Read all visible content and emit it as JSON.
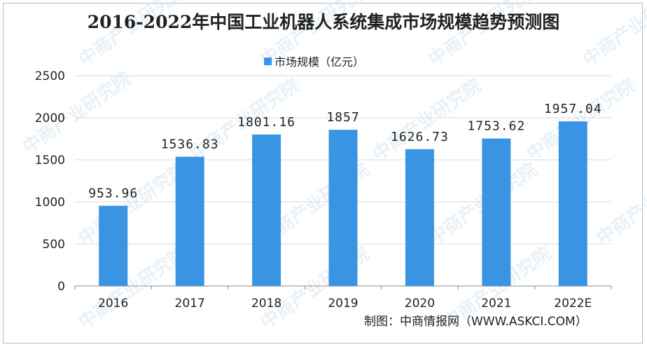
{
  "chart_data": {
    "type": "bar",
    "title": "2016-2022年中国工业机器人系统集成市场规模趋势预测图",
    "legend": {
      "label": "市场规模（亿元）",
      "placement": "top-center"
    },
    "categories": [
      "2016",
      "2017",
      "2018",
      "2019",
      "2020",
      "2021",
      "2022E"
    ],
    "values": [
      953.96,
      1536.83,
      1801.16,
      1857,
      1626.73,
      1753.62,
      1957.04
    ],
    "value_labels": [
      "953.96",
      "1536.83",
      "1801.16",
      "1857",
      "1626.73",
      "1753.62",
      "1957.04"
    ],
    "yticks": [
      "0",
      "500",
      "1000",
      "1500",
      "2000",
      "2500"
    ],
    "ylim": [
      0,
      2500
    ],
    "grid": "horizontal",
    "bar_color": "#3a94e4"
  },
  "watermark": "中商产业研究院",
  "source": "制图：中商情报网（WWW.ASKCI.COM）"
}
